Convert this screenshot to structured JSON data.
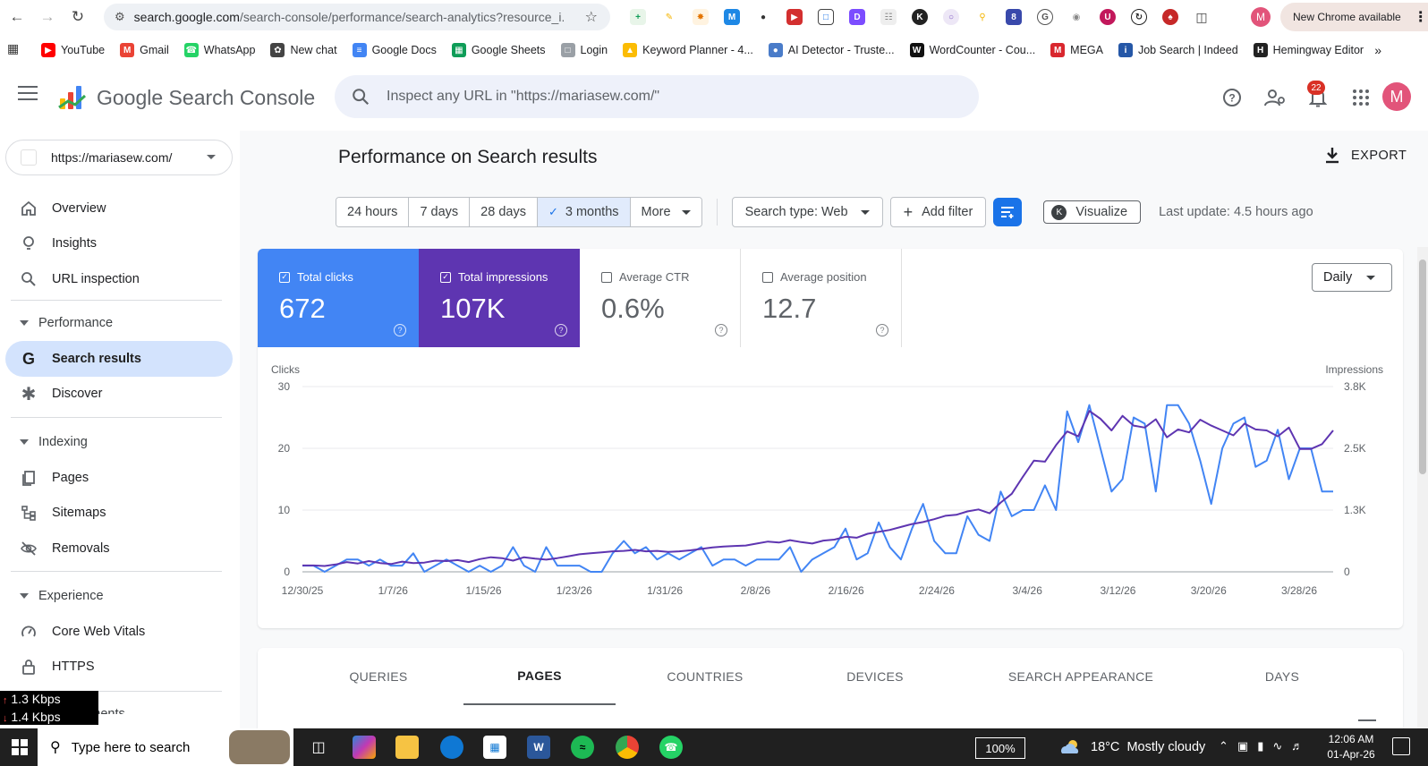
{
  "browser": {
    "url_host": "search.google.com",
    "url_path": "/search-console/performance/search-analytics?resource_i...",
    "new_chrome_label": "New Chrome available",
    "profile_initial": "M",
    "bookmarks": [
      {
        "label": "YouTube",
        "icon": "youtube-icon",
        "color": "#ff0000"
      },
      {
        "label": "Gmail",
        "icon": "gmail-icon",
        "color": "#ea4335"
      },
      {
        "label": "WhatsApp",
        "icon": "whatsapp-icon",
        "color": "#25d366"
      },
      {
        "label": "New chat",
        "icon": "chatgpt-icon",
        "color": "#444444"
      },
      {
        "label": "Google Docs",
        "icon": "google-docs-icon",
        "color": "#4285f4"
      },
      {
        "label": "Google Sheets",
        "icon": "google-sheets-icon",
        "color": "#0f9d58"
      },
      {
        "label": "Login",
        "icon": "login-icon",
        "color": "#9aa0a6"
      },
      {
        "label": "Keyword Planner - 4...",
        "icon": "google-ads-icon",
        "color": "#fbbc04"
      },
      {
        "label": "AI Detector - Truste...",
        "icon": "ai-detector-icon",
        "color": "#4a7cc9"
      },
      {
        "label": "WordCounter - Cou...",
        "icon": "wordcounter-icon",
        "color": "#111111"
      },
      {
        "label": "MEGA",
        "icon": "mega-icon",
        "color": "#d9272e"
      },
      {
        "label": "Job Search | Indeed",
        "icon": "indeed-icon",
        "color": "#2557a7"
      },
      {
        "label": "Hemingway Editor",
        "icon": "hemingway-icon",
        "color": "#222222"
      }
    ]
  },
  "header": {
    "app_title": "Google Search Console",
    "search_placeholder": "Inspect any URL in \"https://mariasew.com/\"",
    "notification_count": "22",
    "avatar_initial": "M"
  },
  "sidebar": {
    "property": "https://mariasew.com/",
    "top_items": [
      {
        "label": "Overview",
        "icon": "home-icon"
      },
      {
        "label": "Insights",
        "icon": "lightbulb-icon"
      },
      {
        "label": "URL inspection",
        "icon": "search-icon"
      }
    ],
    "performance_section": "Performance",
    "performance_items": [
      {
        "label": "Search results",
        "icon": "google-g-icon"
      },
      {
        "label": "Discover",
        "icon": "asterisk-icon"
      }
    ],
    "indexing_section": "Indexing",
    "indexing_items": [
      {
        "label": "Pages",
        "icon": "pages-icon"
      },
      {
        "label": "Sitemaps",
        "icon": "sitemap-icon"
      },
      {
        "label": "Removals",
        "icon": "removals-icon"
      }
    ],
    "experience_section": "Experience",
    "experience_items": [
      {
        "label": "Core Web Vitals",
        "icon": "gauge-icon"
      },
      {
        "label": "HTTPS",
        "icon": "lock-icon"
      }
    ],
    "enhancements_section": "Enhancements"
  },
  "netmeter": {
    "up": "1.3 Kbps",
    "down": "1.4 Kbps"
  },
  "main": {
    "title": "Performance on Search results",
    "export_label": "EXPORT",
    "date_ranges": [
      "24 hours",
      "7 days",
      "28 days",
      "3 months",
      "More"
    ],
    "selected_range": "3 months",
    "search_type": "Search type: Web",
    "add_filter": "Add filter",
    "visualize": "Visualize",
    "last_update": "Last update: 4.5 hours ago",
    "metrics": [
      {
        "label": "Total clicks",
        "value": "672",
        "checked": true
      },
      {
        "label": "Total impressions",
        "value": "107K",
        "checked": true
      },
      {
        "label": "Average CTR",
        "value": "0.6%",
        "checked": false
      },
      {
        "label": "Average position",
        "value": "12.7",
        "checked": false
      }
    ],
    "granularity": "Daily",
    "tabs": [
      "QUERIES",
      "PAGES",
      "COUNTRIES",
      "DEVICES",
      "SEARCH APPEARANCE",
      "DAYS"
    ],
    "active_tab": "PAGES"
  },
  "chart_data": {
    "type": "line",
    "ylabel_left": "Clicks",
    "ylabel_right": "Impressions",
    "y_left_ticks": [
      "0",
      "10",
      "20",
      "30"
    ],
    "y_right_ticks": [
      "0",
      "1.3K",
      "2.5K",
      "3.8K"
    ],
    "ylim_left": [
      0,
      30
    ],
    "ylim_right": [
      0,
      3800
    ],
    "x_tick_labels": [
      "12/30/25",
      "1/7/26",
      "1/15/26",
      "1/23/26",
      "1/31/26",
      "2/8/26",
      "2/16/26",
      "2/24/26",
      "3/4/26",
      "3/12/26",
      "3/20/26",
      "3/28/26"
    ],
    "x_start": "2025-12-30",
    "x_end": "2026-03-31",
    "series": [
      {
        "name": "Clicks",
        "color": "#4285f4",
        "axis": "left",
        "values": [
          1,
          1,
          0,
          1,
          2,
          2,
          1,
          2,
          1,
          1,
          3,
          0,
          1,
          2,
          1,
          0,
          1,
          0,
          1,
          4,
          1,
          0,
          4,
          1,
          1,
          1,
          0,
          0,
          3,
          5,
          3,
          4,
          2,
          3,
          2,
          3,
          4,
          1,
          2,
          2,
          1,
          2,
          2,
          2,
          4,
          0,
          2,
          3,
          4,
          7,
          2,
          3,
          8,
          4,
          2,
          7,
          11,
          5,
          3,
          3,
          9,
          6,
          5,
          13,
          9,
          10,
          10,
          14,
          10,
          26,
          21,
          27,
          20,
          13,
          15,
          25,
          24,
          13,
          27,
          27,
          24,
          18,
          11,
          20,
          24,
          25,
          17,
          18,
          23,
          15,
          20,
          20,
          13,
          13
        ]
      },
      {
        "name": "Impressions",
        "color": "#5e35b1",
        "axis": "right",
        "values": [
          130,
          130,
          120,
          150,
          200,
          170,
          220,
          180,
          160,
          210,
          180,
          190,
          230,
          220,
          240,
          200,
          260,
          300,
          280,
          230,
          300,
          270,
          250,
          280,
          320,
          360,
          380,
          400,
          420,
          430,
          450,
          420,
          430,
          410,
          420,
          440,
          470,
          500,
          520,
          530,
          540,
          580,
          620,
          600,
          650,
          610,
          580,
          640,
          660,
          720,
          700,
          780,
          820,
          860,
          920,
          980,
          1020,
          1080,
          1150,
          1170,
          1240,
          1280,
          1200,
          1420,
          1600,
          1950,
          2280,
          2260,
          2600,
          2880,
          2780,
          3300,
          3140,
          2900,
          3200,
          3000,
          2960,
          3130,
          2760,
          2920,
          2860,
          3120,
          3000,
          2900,
          2800,
          3040,
          2920,
          2900,
          2780,
          2960,
          2520,
          2520,
          2620,
          2900
        ]
      }
    ]
  },
  "taskbar": {
    "search_placeholder": "Type here to search",
    "zoom": "100%",
    "weather": "18°C  Mostly cloudy",
    "time": "12:06 AM",
    "date": "01-Apr-26"
  }
}
